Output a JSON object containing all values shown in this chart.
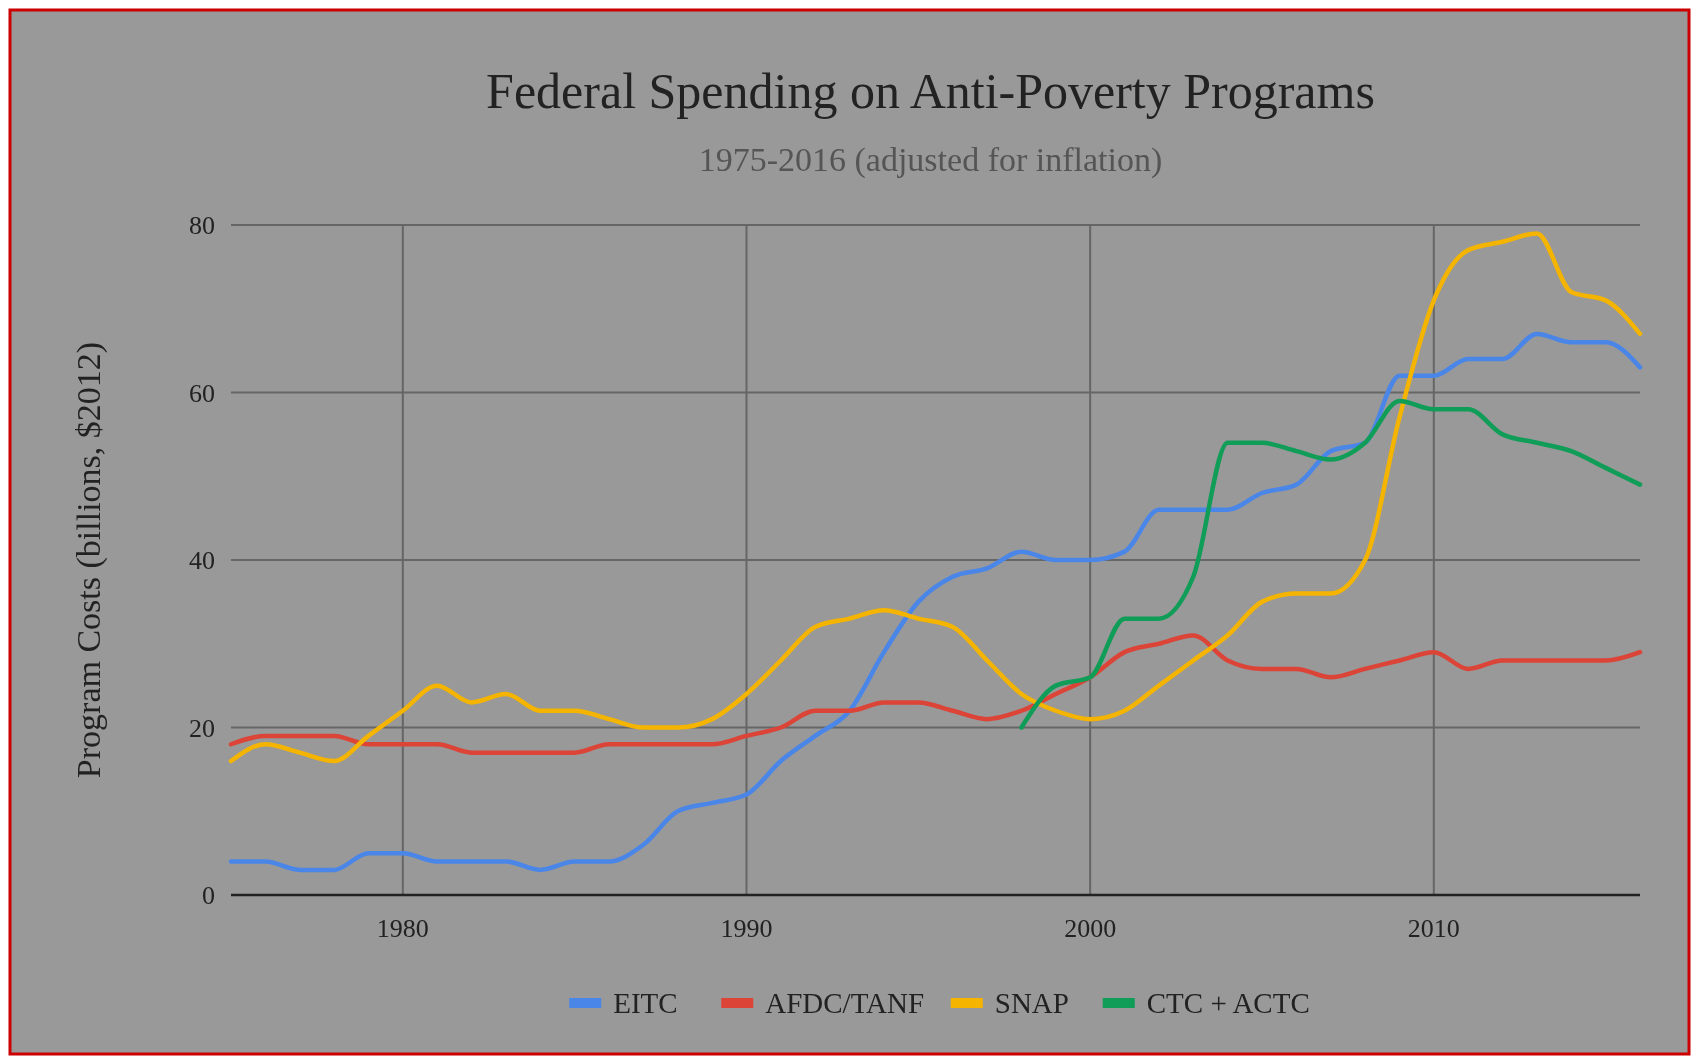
{
  "chart_data": {
    "type": "line",
    "title": "Federal Spending on Anti-Poverty Programs",
    "subtitle": "1975-2016 (adjusted for inflation)",
    "ylabel": "Program Costs (billions, $2012)",
    "x": [
      1975,
      1976,
      1977,
      1978,
      1979,
      1980,
      1981,
      1982,
      1983,
      1984,
      1985,
      1986,
      1987,
      1988,
      1989,
      1990,
      1991,
      1992,
      1993,
      1994,
      1995,
      1996,
      1997,
      1998,
      1999,
      2000,
      2001,
      2002,
      2003,
      2004,
      2005,
      2006,
      2007,
      2008,
      2009,
      2010,
      2011,
      2012,
      2013,
      2014,
      2015,
      2016
    ],
    "series": [
      {
        "name": "EITC",
        "color": "#4a86e8",
        "values": [
          4,
          4,
          3,
          3,
          5,
          5,
          4,
          4,
          4,
          3,
          4,
          4,
          6,
          10,
          11,
          12,
          16,
          19,
          22,
          29,
          35,
          38,
          39,
          41,
          40,
          40,
          41,
          46,
          46,
          46,
          48,
          49,
          53,
          54,
          62,
          62,
          64,
          64,
          67,
          66,
          66,
          63
        ]
      },
      {
        "name": "AFDC/TANF",
        "color": "#db4437",
        "values": [
          18,
          19,
          19,
          19,
          18,
          18,
          18,
          17,
          17,
          17,
          17,
          18,
          18,
          18,
          18,
          19,
          20,
          22,
          22,
          23,
          23,
          22,
          21,
          22,
          24,
          26,
          29,
          30,
          31,
          28,
          27,
          27,
          26,
          27,
          28,
          29,
          27,
          28,
          28,
          28,
          28,
          29
        ]
      },
      {
        "name": "SNAP",
        "color": "#f4b400",
        "values": [
          16,
          18,
          17,
          16,
          19,
          22,
          25,
          23,
          24,
          22,
          22,
          21,
          20,
          20,
          21,
          24,
          28,
          32,
          33,
          34,
          33,
          32,
          28,
          24,
          22,
          21,
          22,
          25,
          28,
          31,
          35,
          36,
          36,
          40,
          57,
          71,
          77,
          78,
          79,
          72,
          71,
          67
        ]
      },
      {
        "name": "CTC + ACTC",
        "color": "#0f9d58",
        "x": [
          1998,
          1999,
          2000,
          2001,
          2002,
          2003,
          2004,
          2005,
          2006,
          2007,
          2008,
          2009,
          2010,
          2011,
          2012,
          2013,
          2014,
          2015,
          2016
        ],
        "values": [
          20,
          25,
          26,
          33,
          33,
          38,
          54,
          54,
          53,
          52,
          54,
          59,
          58,
          58,
          55,
          54,
          53,
          51,
          49
        ]
      }
    ],
    "xlim": [
      1975,
      2016
    ],
    "xticks": [
      1980,
      1990,
      2000,
      2010
    ],
    "ylim": [
      0,
      80
    ],
    "yticks": [
      0,
      20,
      40,
      60,
      80
    ],
    "grid": true,
    "legend": "bottom",
    "line_style": "solid",
    "marker": "none"
  }
}
